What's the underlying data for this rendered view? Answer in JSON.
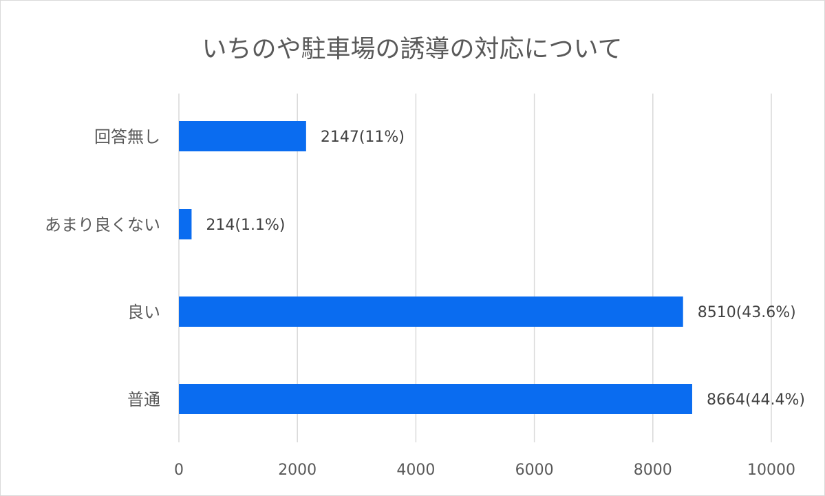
{
  "chart_data": {
    "type": "bar",
    "orientation": "horizontal",
    "title": "いちのや駐車場の誘導の対応について",
    "categories": [
      "回答無し",
      "あまり良くない",
      "良い",
      "普通"
    ],
    "values": [
      2147,
      214,
      8510,
      8664
    ],
    "data_labels": [
      "2147(11%)",
      "214(1.1%)",
      "8510(43.6%)",
      "8664(44.4%)"
    ],
    "xlim": [
      0,
      10000
    ],
    "x_ticks": [
      0,
      2000,
      4000,
      6000,
      8000,
      10000
    ],
    "x_tick_labels": [
      "0",
      "2000",
      "4000",
      "6000",
      "8000",
      "10000"
    ],
    "grid": true,
    "bar_color": "#0a6cf0",
    "legend": "none"
  }
}
